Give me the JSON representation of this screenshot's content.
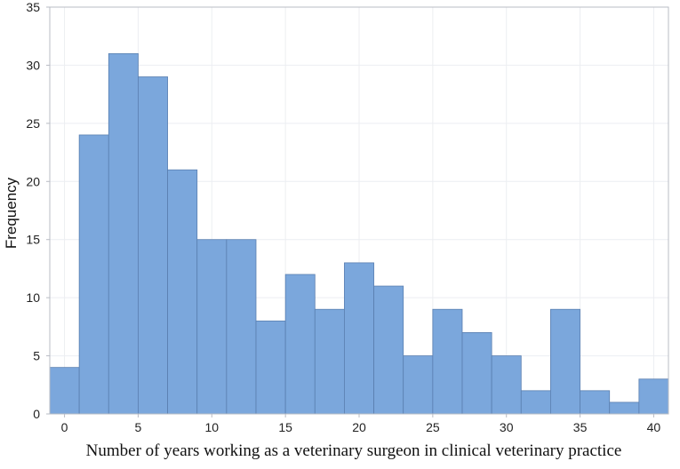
{
  "chart_data": {
    "type": "bar",
    "title": "",
    "xlabel": "Number of years working as a veterinary surgeon in clinical veterinary practice",
    "ylabel": "Frequency",
    "bin_width": 2,
    "bin_starts": [
      -1,
      1,
      3,
      5,
      7,
      9,
      11,
      13,
      15,
      17,
      19,
      21,
      23,
      25,
      27,
      29,
      31,
      33,
      35,
      37,
      39
    ],
    "values": [
      4,
      24,
      31,
      29,
      21,
      15,
      15,
      8,
      12,
      9,
      13,
      11,
      5,
      9,
      7,
      5,
      2,
      9,
      2,
      1,
      3
    ],
    "xlim": [
      -1,
      41
    ],
    "ylim": [
      0,
      35
    ],
    "x_ticks": [
      "0",
      "5",
      "10",
      "15",
      "20",
      "25",
      "30",
      "35",
      "40"
    ],
    "y_ticks": [
      "0",
      "5",
      "10",
      "15",
      "20",
      "25",
      "30",
      "35"
    ],
    "grid": true,
    "colors": {
      "bar": "#7ba7dc",
      "bar_edge": "#5a7fb0",
      "grid": "#eceef2",
      "frame": "#b9bcc4"
    }
  }
}
